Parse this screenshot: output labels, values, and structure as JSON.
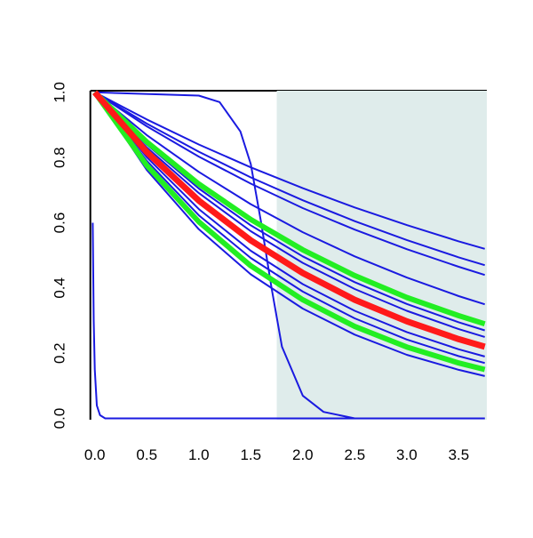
{
  "chart_data": {
    "type": "line",
    "xlim": [
      -0.1,
      3.77
    ],
    "ylim": [
      -0.004,
      1.005
    ],
    "xticks": [
      {
        "value": 0,
        "label": "0.0"
      },
      {
        "value": 0.5,
        "label": "0.5"
      },
      {
        "value": 1,
        "label": "1.0"
      },
      {
        "value": 1.5,
        "label": "1.5"
      },
      {
        "value": 2,
        "label": "2.0"
      },
      {
        "value": 2.5,
        "label": "2.5"
      },
      {
        "value": 3,
        "label": "3.0"
      },
      {
        "value": 3.5,
        "label": "3.5"
      }
    ],
    "yticks": [
      {
        "value": 0,
        "label": "0.0"
      },
      {
        "value": 0.2,
        "label": "0.2"
      },
      {
        "value": 0.4,
        "label": "0.4"
      },
      {
        "value": 0.6,
        "label": "0.6"
      },
      {
        "value": 0.8,
        "label": "0.8"
      },
      {
        "value": 1,
        "label": "1.0"
      }
    ],
    "shaded_xrange": [
      1.75,
      3.77
    ],
    "shade_color": "#dfeceb",
    "x": [
      0,
      0.5,
      1,
      1.5,
      2,
      2.5,
      3,
      3.5,
      3.75
    ],
    "series": [
      {
        "color": "#1a1ae0",
        "width": 2,
        "values": [
          1,
          0.917,
          0.84,
          0.77,
          0.706,
          0.647,
          0.593,
          0.543,
          0.52
        ]
      },
      {
        "color": "#1a1ae0",
        "width": 2,
        "values": [
          1,
          0.904,
          0.818,
          0.739,
          0.669,
          0.605,
          0.547,
          0.494,
          0.47
        ]
      },
      {
        "color": "#1a1ae0",
        "width": 2,
        "values": [
          1,
          0.896,
          0.803,
          0.72,
          0.645,
          0.579,
          0.519,
          0.465,
          0.44
        ]
      },
      {
        "color": "#1a1ae0",
        "width": 2,
        "values": [
          1,
          0.869,
          0.756,
          0.657,
          0.571,
          0.497,
          0.432,
          0.375,
          0.35
        ]
      },
      {
        "color": "#1a1ae0",
        "width": 2,
        "values": [
          1,
          0.84,
          0.705,
          0.592,
          0.497,
          0.418,
          0.351,
          0.295,
          0.27
        ]
      },
      {
        "color": "#1a1ae0",
        "width": 2,
        "values": [
          1,
          0.831,
          0.691,
          0.574,
          0.477,
          0.397,
          0.33,
          0.274,
          0.25
        ]
      },
      {
        "color": "#1a1ae0",
        "width": 2,
        "values": [
          1,
          0.801,
          0.642,
          0.514,
          0.412,
          0.33,
          0.265,
          0.212,
          0.19
        ]
      },
      {
        "color": "#1a1ae0",
        "width": 2,
        "values": [
          1,
          0.79,
          0.623,
          0.492,
          0.389,
          0.307,
          0.242,
          0.191,
          0.17
        ]
      },
      {
        "color": "#1a1ae0",
        "width": 2,
        "values": [
          1,
          0.762,
          0.58,
          0.442,
          0.337,
          0.257,
          0.195,
          0.149,
          0.13
        ]
      },
      {
        "color": "#1a1ae0",
        "width": 2,
        "x": [
          0,
          1,
          1.2,
          1.4,
          1.5,
          1.6,
          1.7,
          1.8,
          2,
          2.2,
          2.5,
          3.75
        ],
        "values": [
          1,
          0.99,
          0.97,
          0.88,
          0.78,
          0.6,
          0.4,
          0.22,
          0.07,
          0.02,
          0,
          0
        ]
      },
      {
        "color": "#1a1ae0",
        "width": 2,
        "x": [
          -0.02,
          -0.01,
          0,
          0.02,
          0.05,
          0.1,
          3.75
        ],
        "values": [
          0.6,
          0.3,
          0.15,
          0.04,
          0.01,
          0,
          0
        ]
      },
      {
        "color": "#22ee22",
        "width": 6,
        "values": [
          1,
          0.848,
          0.719,
          0.61,
          0.517,
          0.438,
          0.371,
          0.315,
          0.29
        ]
      },
      {
        "color": "#22ee22",
        "width": 6,
        "values": [
          1,
          0.776,
          0.603,
          0.468,
          0.364,
          0.282,
          0.219,
          0.17,
          0.15
        ]
      },
      {
        "color": "#ff1a1a",
        "width": 7,
        "values": [
          1,
          0.817,
          0.668,
          0.546,
          0.446,
          0.364,
          0.298,
          0.243,
          0.22
        ]
      }
    ]
  }
}
